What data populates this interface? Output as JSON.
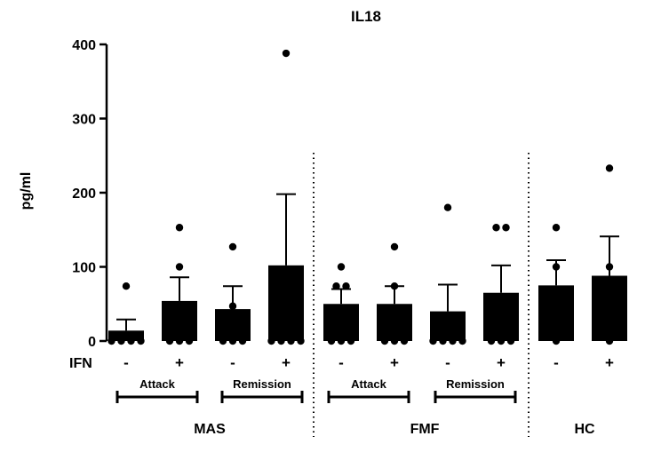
{
  "chart_data": {
    "type": "bar",
    "title": "IL18",
    "ylabel": "pg/ml",
    "xlabel": "",
    "ylim": [
      0,
      400
    ],
    "yticks": [
      "0",
      "100",
      "200",
      "300",
      "400"
    ],
    "ifn_row_label": "IFN",
    "categories": [
      "-",
      "+",
      "-",
      "+",
      "-",
      "+",
      "-",
      "+",
      "-",
      "+"
    ],
    "values": [
      14,
      54,
      43,
      102,
      50,
      50,
      40,
      65,
      75,
      88
    ],
    "errors": [
      15,
      32,
      31,
      96,
      20,
      24,
      36,
      37,
      34,
      53
    ],
    "points": [
      [
        0,
        0,
        0,
        0,
        74
      ],
      [
        0,
        0,
        0,
        100,
        153
      ],
      [
        0,
        0,
        0,
        47,
        127
      ],
      [
        0,
        0,
        0,
        0,
        388
      ],
      [
        0,
        0,
        0,
        74,
        74,
        100
      ],
      [
        0,
        0,
        0,
        74,
        127
      ],
      [
        0,
        0,
        0,
        0,
        180
      ],
      [
        0,
        0,
        0,
        153,
        153
      ],
      [
        0,
        100,
        153
      ],
      [
        0,
        100,
        233
      ]
    ],
    "subgroups": [
      "Attack",
      "Remission",
      "Attack",
      "Remission"
    ],
    "groups": [
      "MAS",
      "FMF",
      "HC"
    ],
    "grid": false,
    "legend": "none"
  }
}
